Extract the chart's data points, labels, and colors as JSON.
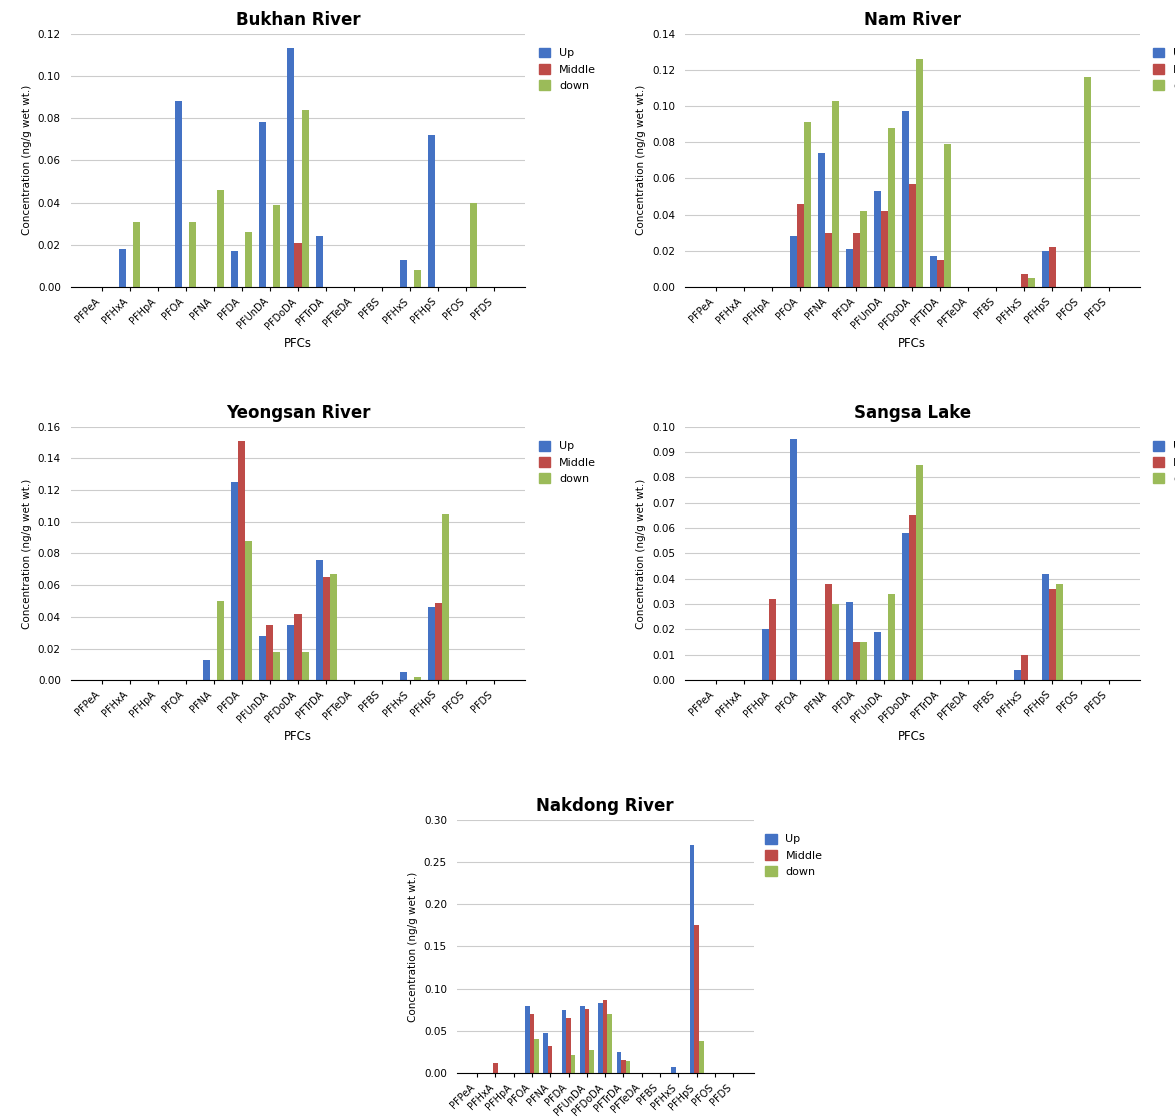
{
  "categories": [
    "PFPeA",
    "PFHxA",
    "PFHpA",
    "PFOA",
    "PFNA",
    "PFDA",
    "PFUnDA",
    "PFDoDA",
    "PFTrDA",
    "PFTeDA",
    "PFBS",
    "PFHxS",
    "PFHpS",
    "PFOS",
    "PFDS"
  ],
  "charts": [
    {
      "title": "Bukhan River",
      "ylim": [
        0,
        0.12
      ],
      "yticks": [
        0,
        0.02,
        0.04,
        0.06,
        0.08,
        0.1,
        0.12
      ],
      "up": [
        0,
        0.018,
        0,
        0.088,
        0,
        0.017,
        0.078,
        0.113,
        0.024,
        0,
        0,
        0.013,
        0.072,
        0,
        0
      ],
      "middle": [
        0,
        0,
        0,
        0,
        0,
        0,
        0,
        0.021,
        0,
        0,
        0,
        0,
        0,
        0,
        0
      ],
      "down": [
        0,
        0.031,
        0,
        0.031,
        0.046,
        0.026,
        0.039,
        0.084,
        0,
        0,
        0,
        0.008,
        0,
        0.04,
        0
      ]
    },
    {
      "title": "Nam River",
      "ylim": [
        0,
        0.14
      ],
      "yticks": [
        0,
        0.02,
        0.04,
        0.06,
        0.08,
        0.1,
        0.12,
        0.14
      ],
      "up": [
        0,
        0,
        0,
        0.028,
        0.074,
        0.021,
        0.053,
        0.097,
        0.017,
        0,
        0,
        0,
        0.02,
        0,
        0
      ],
      "middle": [
        0,
        0,
        0,
        0.046,
        0.03,
        0.03,
        0.042,
        0.057,
        0.015,
        0,
        0,
        0.007,
        0.022,
        0,
        0
      ],
      "down": [
        0,
        0,
        0,
        0.091,
        0.103,
        0.042,
        0.088,
        0.126,
        0.079,
        0,
        0,
        0.005,
        0,
        0.116,
        0
      ]
    },
    {
      "title": "Yeongsan River",
      "ylim": [
        0,
        0.16
      ],
      "yticks": [
        0,
        0.02,
        0.04,
        0.06,
        0.08,
        0.1,
        0.12,
        0.14,
        0.16
      ],
      "up": [
        0,
        0,
        0,
        0,
        0.013,
        0.125,
        0.028,
        0.035,
        0.076,
        0,
        0,
        0.005,
        0.046,
        0,
        0
      ],
      "middle": [
        0,
        0,
        0,
        0,
        0,
        0.151,
        0.035,
        0.042,
        0.065,
        0,
        0,
        0,
        0.049,
        0,
        0
      ],
      "down": [
        0,
        0,
        0,
        0,
        0.05,
        0.088,
        0.018,
        0.018,
        0.067,
        0,
        0,
        0.002,
        0.105,
        0,
        0
      ]
    },
    {
      "title": "Sangsa Lake",
      "ylim": [
        0,
        0.1
      ],
      "yticks": [
        0,
        0.01,
        0.02,
        0.03,
        0.04,
        0.05,
        0.06,
        0.07,
        0.08,
        0.09,
        0.1
      ],
      "up": [
        0,
        0,
        0.02,
        0.095,
        0,
        0.031,
        0.019,
        0.058,
        0,
        0,
        0,
        0.004,
        0.042,
        0,
        0
      ],
      "middle": [
        0,
        0,
        0.032,
        0,
        0.038,
        0.015,
        0,
        0.065,
        0,
        0,
        0,
        0.01,
        0.036,
        0,
        0
      ],
      "down": [
        0,
        0,
        0,
        0,
        0.03,
        0.015,
        0.034,
        0.085,
        0,
        0,
        0,
        0,
        0.038,
        0,
        0
      ]
    },
    {
      "title": "Nakdong River",
      "ylim": [
        0,
        0.3
      ],
      "yticks": [
        0,
        0.05,
        0.1,
        0.15,
        0.2,
        0.25,
        0.3
      ],
      "up": [
        0,
        0,
        0,
        0.08,
        0.048,
        0.075,
        0.08,
        0.083,
        0.025,
        0,
        0,
        0.008,
        0.27,
        0,
        0
      ],
      "middle": [
        0,
        0.012,
        0,
        0.07,
        0.032,
        0.065,
        0.076,
        0.087,
        0.016,
        0,
        0,
        0,
        0.175,
        0,
        0
      ],
      "down": [
        0,
        0,
        0,
        0.04,
        0,
        0.022,
        0.028,
        0.07,
        0.015,
        0,
        0,
        0,
        0.038,
        0,
        0
      ]
    }
  ],
  "colors": {
    "up": "#4472C4",
    "middle": "#BE4B48",
    "down": "#9BBB59"
  },
  "ylabel": "Concentration (ng/g wet wt.)",
  "xlabel": "PFCs",
  "bar_width": 0.25
}
